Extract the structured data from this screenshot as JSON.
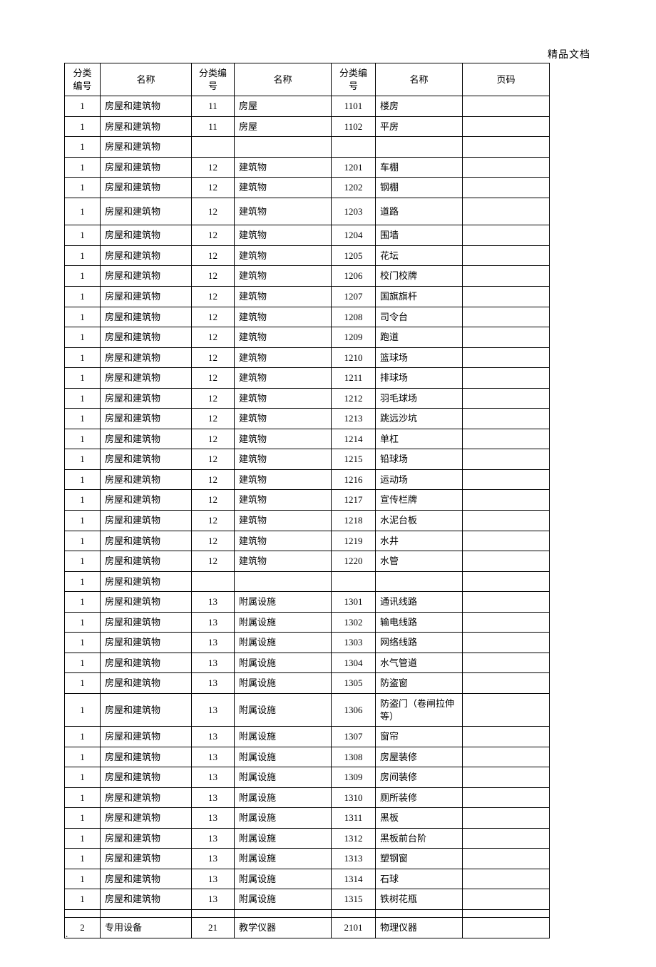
{
  "watermark": "精品文档",
  "footer_dot": ".",
  "header": {
    "code": "分类编号",
    "name": "名称",
    "page": "页码"
  },
  "rows": [
    {
      "c1": "1",
      "c2": "房屋和建筑物",
      "c3": "11",
      "c4": "房屋",
      "c5": "1101",
      "c6": "楼房",
      "c7": ""
    },
    {
      "c1": "1",
      "c2": "房屋和建筑物",
      "c3": "11",
      "c4": "房屋",
      "c5": "1102",
      "c6": "平房",
      "c7": ""
    },
    {
      "c1": "1",
      "c2": "房屋和建筑物",
      "c3": "",
      "c4": "",
      "c5": "",
      "c6": "",
      "c7": ""
    },
    {
      "c1": "1",
      "c2": "房屋和建筑物",
      "c3": "12",
      "c4": "建筑物",
      "c5": "1201",
      "c6": "车棚",
      "c7": ""
    },
    {
      "c1": "1",
      "c2": "房屋和建筑物",
      "c3": "12",
      "c4": "建筑物",
      "c5": "1202",
      "c6": "钢棚",
      "c7": ""
    },
    {
      "c1": "1",
      "c2": "房屋和建筑物",
      "c3": "12",
      "c4": "建筑物",
      "c5": "1203",
      "c6": "道路",
      "c7": "",
      "tall": true
    },
    {
      "c1": "1",
      "c2": "房屋和建筑物",
      "c3": "12",
      "c4": "建筑物",
      "c5": "1204",
      "c6": "围墙",
      "c7": ""
    },
    {
      "c1": "1",
      "c2": "房屋和建筑物",
      "c3": "12",
      "c4": "建筑物",
      "c5": "1205",
      "c6": "花坛",
      "c7": ""
    },
    {
      "c1": "1",
      "c2": "房屋和建筑物",
      "c3": "12",
      "c4": "建筑物",
      "c5": "1206",
      "c6": "校门校牌",
      "c7": ""
    },
    {
      "c1": "1",
      "c2": "房屋和建筑物",
      "c3": "12",
      "c4": "建筑物",
      "c5": "1207",
      "c6": "国旗旗杆",
      "c7": ""
    },
    {
      "c1": "1",
      "c2": "房屋和建筑物",
      "c3": "12",
      "c4": "建筑物",
      "c5": "1208",
      "c6": "司令台",
      "c7": ""
    },
    {
      "c1": "1",
      "c2": "房屋和建筑物",
      "c3": "12",
      "c4": "建筑物",
      "c5": "1209",
      "c6": "跑道",
      "c7": ""
    },
    {
      "c1": "1",
      "c2": "房屋和建筑物",
      "c3": "12",
      "c4": "建筑物",
      "c5": "1210",
      "c6": "篮球场",
      "c7": ""
    },
    {
      "c1": "1",
      "c2": "房屋和建筑物",
      "c3": "12",
      "c4": "建筑物",
      "c5": "1211",
      "c6": "排球场",
      "c7": ""
    },
    {
      "c1": "1",
      "c2": "房屋和建筑物",
      "c3": "12",
      "c4": "建筑物",
      "c5": "1212",
      "c6": "羽毛球场",
      "c7": ""
    },
    {
      "c1": "1",
      "c2": "房屋和建筑物",
      "c3": "12",
      "c4": "建筑物",
      "c5": "1213",
      "c6": "跳远沙坑",
      "c7": ""
    },
    {
      "c1": "1",
      "c2": "房屋和建筑物",
      "c3": "12",
      "c4": "建筑物",
      "c5": "1214",
      "c6": "单杠",
      "c7": ""
    },
    {
      "c1": "1",
      "c2": "房屋和建筑物",
      "c3": "12",
      "c4": "建筑物",
      "c5": "1215",
      "c6": "铅球场",
      "c7": ""
    },
    {
      "c1": "1",
      "c2": "房屋和建筑物",
      "c3": "12",
      "c4": "建筑物",
      "c5": "1216",
      "c6": "运动场",
      "c7": ""
    },
    {
      "c1": "1",
      "c2": "房屋和建筑物",
      "c3": "12",
      "c4": "建筑物",
      "c5": "1217",
      "c6": "宣传栏牌",
      "c7": ""
    },
    {
      "c1": "1",
      "c2": "房屋和建筑物",
      "c3": "12",
      "c4": "建筑物",
      "c5": "1218",
      "c6": "水泥台板",
      "c7": ""
    },
    {
      "c1": "1",
      "c2": "房屋和建筑物",
      "c3": "12",
      "c4": "建筑物",
      "c5": "1219",
      "c6": "水井",
      "c7": ""
    },
    {
      "c1": "1",
      "c2": "房屋和建筑物",
      "c3": "12",
      "c4": "建筑物",
      "c5": "1220",
      "c6": "水管",
      "c7": ""
    },
    {
      "c1": "1",
      "c2": "房屋和建筑物",
      "c3": "",
      "c4": "",
      "c5": "",
      "c6": "",
      "c7": ""
    },
    {
      "c1": "1",
      "c2": "房屋和建筑物",
      "c3": "13",
      "c4": "附属设施",
      "c5": "1301",
      "c6": "通讯线路",
      "c7": ""
    },
    {
      "c1": "1",
      "c2": "房屋和建筑物",
      "c3": "13",
      "c4": "附属设施",
      "c5": "1302",
      "c6": "输电线路",
      "c7": ""
    },
    {
      "c1": "1",
      "c2": "房屋和建筑物",
      "c3": "13",
      "c4": "附属设施",
      "c5": "1303",
      "c6": "网络线路",
      "c7": ""
    },
    {
      "c1": "1",
      "c2": "房屋和建筑物",
      "c3": "13",
      "c4": "附属设施",
      "c5": "1304",
      "c6": "水气管道",
      "c7": ""
    },
    {
      "c1": "1",
      "c2": "房屋和建筑物",
      "c3": "13",
      "c4": "附属设施",
      "c5": "1305",
      "c6": "防盗窗",
      "c7": ""
    },
    {
      "c1": "1",
      "c2": "房屋和建筑物",
      "c3": "13",
      "c4": "附属设施",
      "c5": "1306",
      "c6": "防盗门（卷闸拉伸等）",
      "c7": ""
    },
    {
      "c1": "1",
      "c2": "房屋和建筑物",
      "c3": "13",
      "c4": "附属设施",
      "c5": "1307",
      "c6": "窗帘",
      "c7": ""
    },
    {
      "c1": "1",
      "c2": "房屋和建筑物",
      "c3": "13",
      "c4": "附属设施",
      "c5": "1308",
      "c6": "房屋装修",
      "c7": ""
    },
    {
      "c1": "1",
      "c2": "房屋和建筑物",
      "c3": "13",
      "c4": "附属设施",
      "c5": "1309",
      "c6": "房间装修",
      "c7": ""
    },
    {
      "c1": "1",
      "c2": "房屋和建筑物",
      "c3": "13",
      "c4": "附属设施",
      "c5": "1310",
      "c6": "厕所装修",
      "c7": ""
    },
    {
      "c1": "1",
      "c2": "房屋和建筑物",
      "c3": "13",
      "c4": "附属设施",
      "c5": "1311",
      "c6": "黑板",
      "c7": ""
    },
    {
      "c1": "1",
      "c2": "房屋和建筑物",
      "c3": "13",
      "c4": "附属设施",
      "c5": "1312",
      "c6": "黑板前台阶",
      "c7": ""
    },
    {
      "c1": "1",
      "c2": "房屋和建筑物",
      "c3": "13",
      "c4": "附属设施",
      "c5": "1313",
      "c6": "塑钢窗",
      "c7": ""
    },
    {
      "c1": "1",
      "c2": "房屋和建筑物",
      "c3": "13",
      "c4": "附属设施",
      "c5": "1314",
      "c6": "石球",
      "c7": ""
    },
    {
      "c1": "1",
      "c2": "房屋和建筑物",
      "c3": "13",
      "c4": "附属设施",
      "c5": "1315",
      "c6": "铁树花瓶",
      "c7": ""
    },
    {
      "c1": "",
      "c2": "",
      "c3": "",
      "c4": "",
      "c5": "",
      "c6": "",
      "c7": ""
    },
    {
      "c1": "2",
      "c2": "专用设备",
      "c3": "21",
      "c4": "教学仪器",
      "c5": "2101",
      "c6": "物理仪器",
      "c7": ""
    }
  ]
}
